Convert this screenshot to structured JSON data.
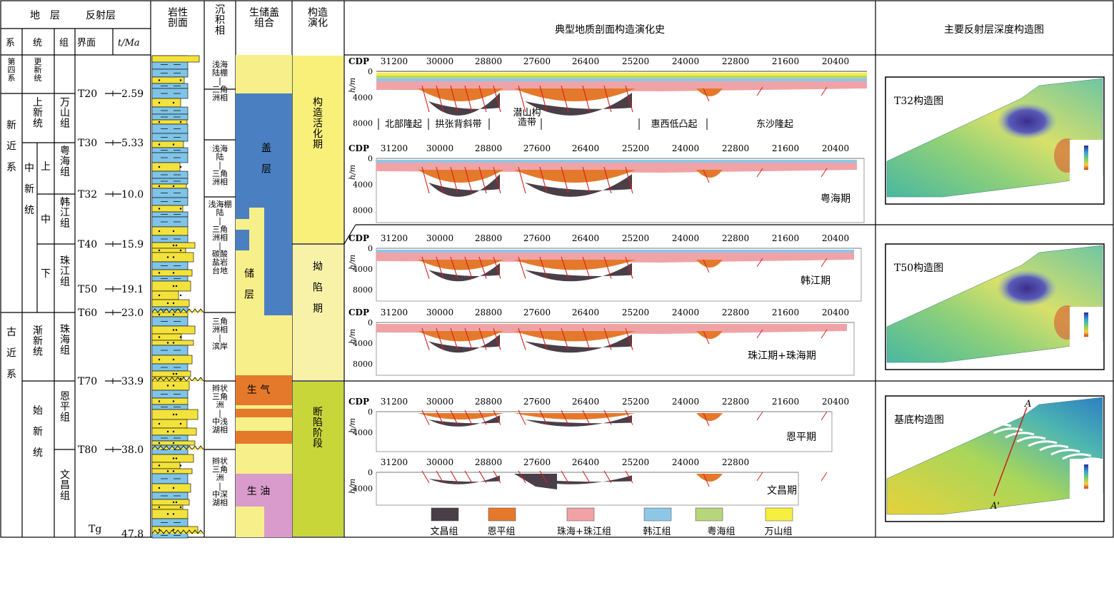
{
  "header": {
    "strata": "地　层",
    "system": "系",
    "series": "统",
    "formation": "组",
    "reflector": "反射层",
    "interface": "界面",
    "age": "t/Ma",
    "lithology": "岩性\n剖面",
    "facies": "沉\n积\n相",
    "src_res_seal": "生储盖\n组合",
    "tectonic": "构造\n演化",
    "sections_title": "典型地质剖面构造演化史",
    "maps_title": "主要反射层深度构造图"
  },
  "systems": [
    "第\n四\n系",
    "新\n\n近\n\n系",
    "古\n\n近\n\n系"
  ],
  "series": [
    "更\n新\n统",
    "上\n新\n统",
    "中\n\n新\n\n统",
    "渐\n新\n统",
    "始\n\n新\n\n统"
  ],
  "subseries": [
    "上",
    "中",
    "下"
  ],
  "formations": [
    "万\n山\n组",
    "粤\n海\n组",
    "韩\n江\n组",
    "珠\n江\n组",
    "珠\n海\n组",
    "恩\n平\n组",
    "文\n昌\n组"
  ],
  "reflectors": [
    {
      "name": "T20",
      "age": "2.59"
    },
    {
      "name": "T30",
      "age": "5.33"
    },
    {
      "name": "T32",
      "age": "10.0"
    },
    {
      "name": "T40",
      "age": "15.9"
    },
    {
      "name": "T50",
      "age": "19.1"
    },
    {
      "name": "T60",
      "age": "23.0"
    },
    {
      "name": "T70",
      "age": "33.9"
    },
    {
      "name": "T80",
      "age": "38.0"
    },
    {
      "name": "Tg",
      "age": "47.8"
    }
  ],
  "facies": [
    "浅海\n陆棚\n|\n三角\n洲相",
    "浅海\n陆\n|\n三角\n洲相",
    "浅海棚\n陆\n|\n三角\n洲相\n|\n碳酸\n盐岩\n台地",
    "三角\n洲相\n|\n滨岸",
    "辫状\n三角\n洲\n|\n中浅\n湖相",
    "辫状\n三角\n洲\n|\n中深\n湖相"
  ],
  "combos": {
    "seal": "盖\n\n层",
    "reservoir": "储\n\n层",
    "gas": "生 气",
    "oil": "生 油"
  },
  "tectonic_stages": [
    "构\n造\n活\n化\n期",
    "拗\n\n陷\n\n期",
    "断\n陷\n阶\n段"
  ],
  "sections": {
    "cdp_label": "CDP",
    "cdp_ticks": [
      "31200",
      "30000",
      "28800",
      "27600",
      "26400",
      "25200",
      "24000",
      "22800",
      "21600",
      "20400"
    ],
    "depth_unit": "h/m",
    "depth_ticks_full": [
      "0",
      "4000",
      "8000"
    ],
    "depth_ticks_short": [
      "0",
      "4000"
    ],
    "regions": [
      "北部隆起",
      "拱张背斜带",
      "潜山构\n造带",
      "惠西低凸起",
      "东沙隆起"
    ],
    "stage_labels": [
      "粤海期",
      "韩江期",
      "珠江期+珠海期",
      "恩平期",
      "文昌期"
    ]
  },
  "legend": [
    {
      "label": "文昌组",
      "color": "#4a3f48"
    },
    {
      "label": "恩平组",
      "color": "#e5792b"
    },
    {
      "label": "珠海+珠江组",
      "color": "#f0a3a6"
    },
    {
      "label": "韩江组",
      "color": "#8ec6e6"
    },
    {
      "label": "粤海组",
      "color": "#b7d67b"
    },
    {
      "label": "万山组",
      "color": "#f7ef3f"
    }
  ],
  "maps": [
    {
      "title": "T32构造图"
    },
    {
      "title": "T50构造图"
    },
    {
      "title": "基底构造图",
      "line_start": "A",
      "line_end": "A'"
    }
  ],
  "colors": {
    "seal": "#4a7fc1",
    "reservoir": "#f7ef8a",
    "gas": "#e5792b",
    "oil": "#d99bcc",
    "stage_active": "#f9f07a",
    "stage_sag": "#f8f2a8",
    "stage_rift": "#c9d63a",
    "litho_blue": "#7fc4e8",
    "litho_yellow": "#f3e23b"
  }
}
